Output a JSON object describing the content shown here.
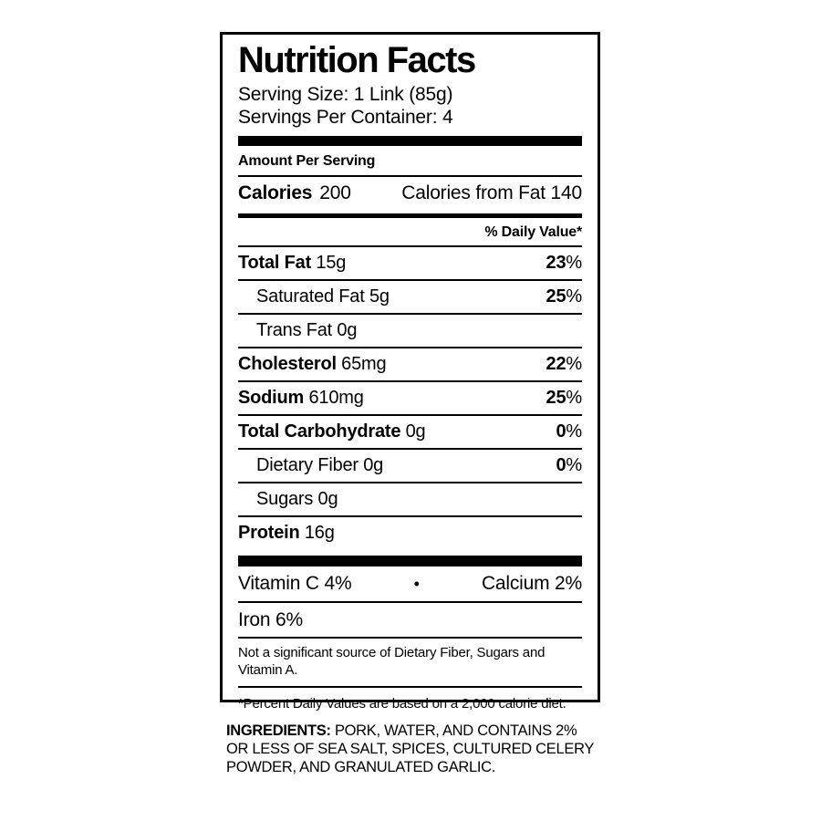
{
  "label": {
    "title": "Nutrition Facts",
    "serving_size": "Serving Size: 1 Link (85g)",
    "servings_per_container": "Servings Per Container: 4",
    "amount_per_serving": "Amount Per Serving",
    "calories": {
      "label": "Calories",
      "value": "200",
      "from_fat": "Calories from Fat 140"
    },
    "daily_value_header": "% Daily Value*",
    "rows": [
      {
        "name": "Total Fat",
        "amount": "15g",
        "dv": "23%",
        "indent": false
      },
      {
        "name": "Saturated Fat",
        "amount": "5g",
        "dv": "25%",
        "indent": true
      },
      {
        "name": "Trans Fat",
        "amount": "0g",
        "dv": "",
        "indent": true
      },
      {
        "name": "Cholesterol",
        "amount": "65mg",
        "dv": "22%",
        "indent": false
      },
      {
        "name": "Sodium",
        "amount": "610mg",
        "dv": "25%",
        "indent": false
      },
      {
        "name": "Total Carbohydrate",
        "amount": "0g",
        "dv": "0%",
        "indent": false
      },
      {
        "name": "Dietary Fiber",
        "amount": "0g",
        "dv": "0%",
        "indent": true
      },
      {
        "name": "Sugars",
        "amount": "0g",
        "dv": "",
        "indent": true
      },
      {
        "name": "Protein",
        "amount": "16g",
        "dv": "",
        "indent": false
      }
    ],
    "micronutrients": {
      "vitamin_c": "Vitamin C 4%",
      "separator": "•",
      "calcium": "Calcium 2%",
      "iron": "Iron 6%"
    },
    "not_significant_note": "Not a significant source of Dietary Fiber, Sugars and Vitamin A.",
    "footnote": "*Percent Daily Values are based on a 2,000 calorie diet."
  },
  "ingredients": {
    "label": "INGREDIENTS:",
    "text": " PORK, WATER, AND CONTAINS 2% OR LESS OF SEA SALT, SPICES, CULTURED CELERY POWDER, AND GRANULATED GARLIC."
  },
  "colors": {
    "ink": "#000000",
    "background": "#ffffff"
  }
}
